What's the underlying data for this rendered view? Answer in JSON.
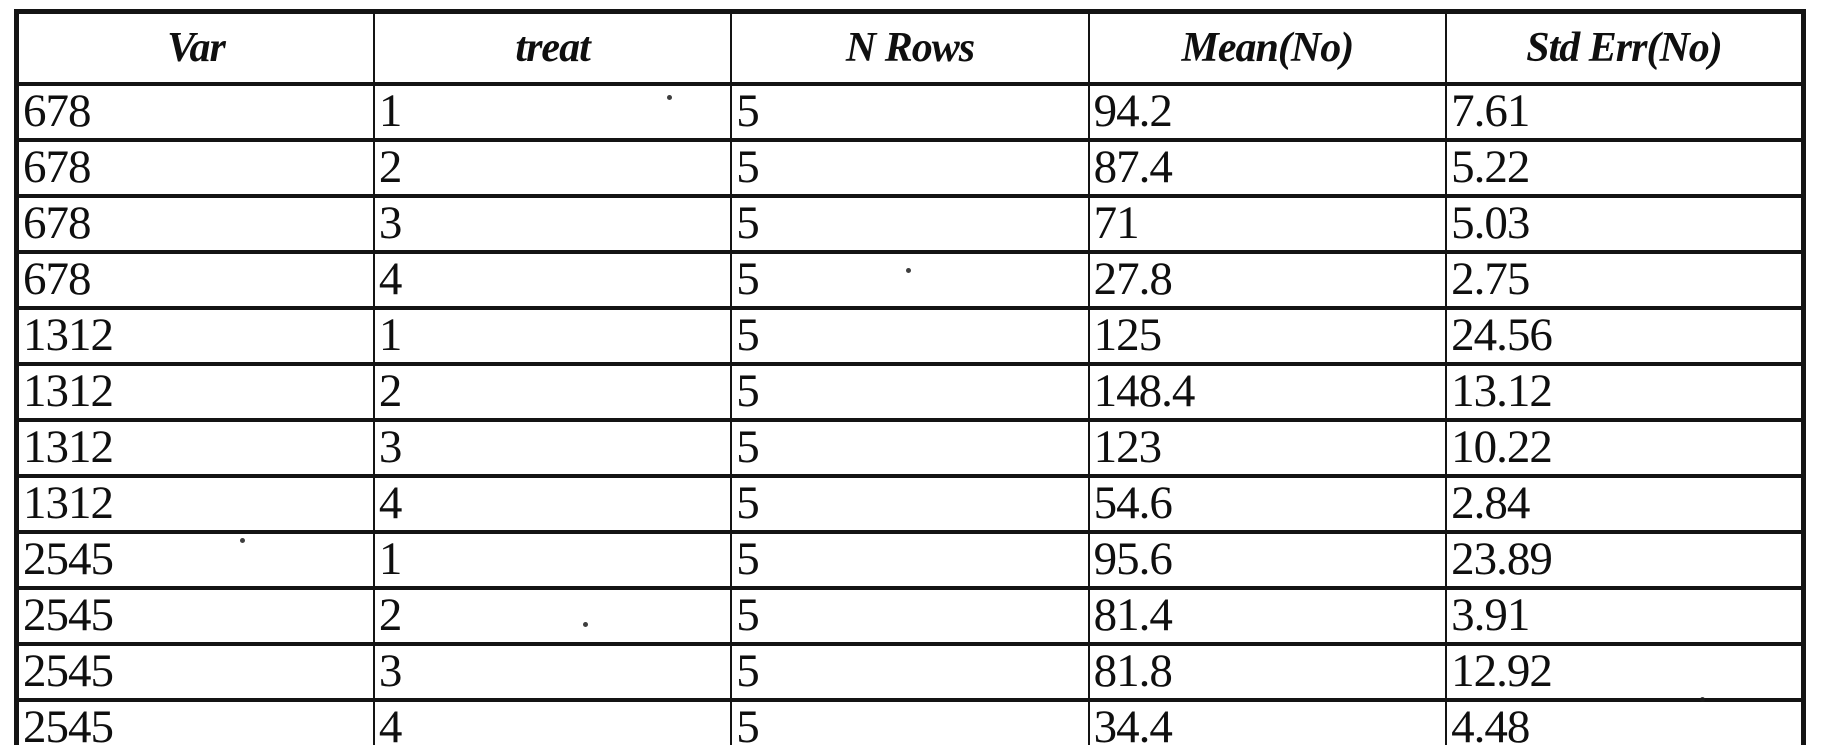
{
  "table": {
    "headers": [
      "Var",
      "treat",
      "N Rows",
      "Mean(No)",
      "Std Err(No)"
    ],
    "column_keys": [
      "var",
      "treat",
      "n-rows",
      "mean-no",
      "std-err-no"
    ],
    "rows": [
      [
        "678",
        "1",
        "5",
        "94.2",
        "7.61"
      ],
      [
        "678",
        "2",
        "5",
        "87.4",
        "5.22"
      ],
      [
        "678",
        "3",
        "5",
        "71",
        "5.03"
      ],
      [
        "678",
        "4",
        "5",
        "27.8",
        "2.75"
      ],
      [
        "1312",
        "1",
        "5",
        "125",
        "24.56"
      ],
      [
        "1312",
        "2",
        "5",
        "148.4",
        "13.12"
      ],
      [
        "1312",
        "3",
        "5",
        "123",
        "10.22"
      ],
      [
        "1312",
        "4",
        "5",
        "54.6",
        "2.84"
      ],
      [
        "2545",
        "1",
        "5",
        "95.6",
        "23.89"
      ],
      [
        "2545",
        "2",
        "5",
        "81.4",
        "3.91"
      ],
      [
        "2545",
        "3",
        "5",
        "81.8",
        "12.92"
      ],
      [
        "2545",
        "4",
        "5",
        "34.4",
        "4.48"
      ]
    ]
  },
  "colors": {
    "border": "#141414",
    "text": "#0f0f0f",
    "background": "#ffffff"
  },
  "chart_data": {
    "type": "table",
    "columns": [
      "Var",
      "treat",
      "N Rows",
      "Mean(No)",
      "Std Err(No)"
    ],
    "rows": [
      [
        "678",
        "1",
        "5",
        "94.2",
        "7.61"
      ],
      [
        "678",
        "2",
        "5",
        "87.4",
        "5.22"
      ],
      [
        "678",
        "3",
        "5",
        "71",
        "5.03"
      ],
      [
        "678",
        "4",
        "5",
        "27.8",
        "2.75"
      ],
      [
        "1312",
        "1",
        "5",
        "125",
        "24.56"
      ],
      [
        "1312",
        "2",
        "5",
        "148.4",
        "13.12"
      ],
      [
        "1312",
        "3",
        "5",
        "123",
        "10.22"
      ],
      [
        "1312",
        "4",
        "5",
        "54.6",
        "2.84"
      ],
      [
        "2545",
        "1",
        "5",
        "95.6",
        "23.89"
      ],
      [
        "2545",
        "2",
        "5",
        "81.4",
        "3.91"
      ],
      [
        "2545",
        "3",
        "5",
        "81.8",
        "12.92"
      ],
      [
        "2545",
        "4",
        "5",
        "34.4",
        "4.48"
      ]
    ]
  }
}
